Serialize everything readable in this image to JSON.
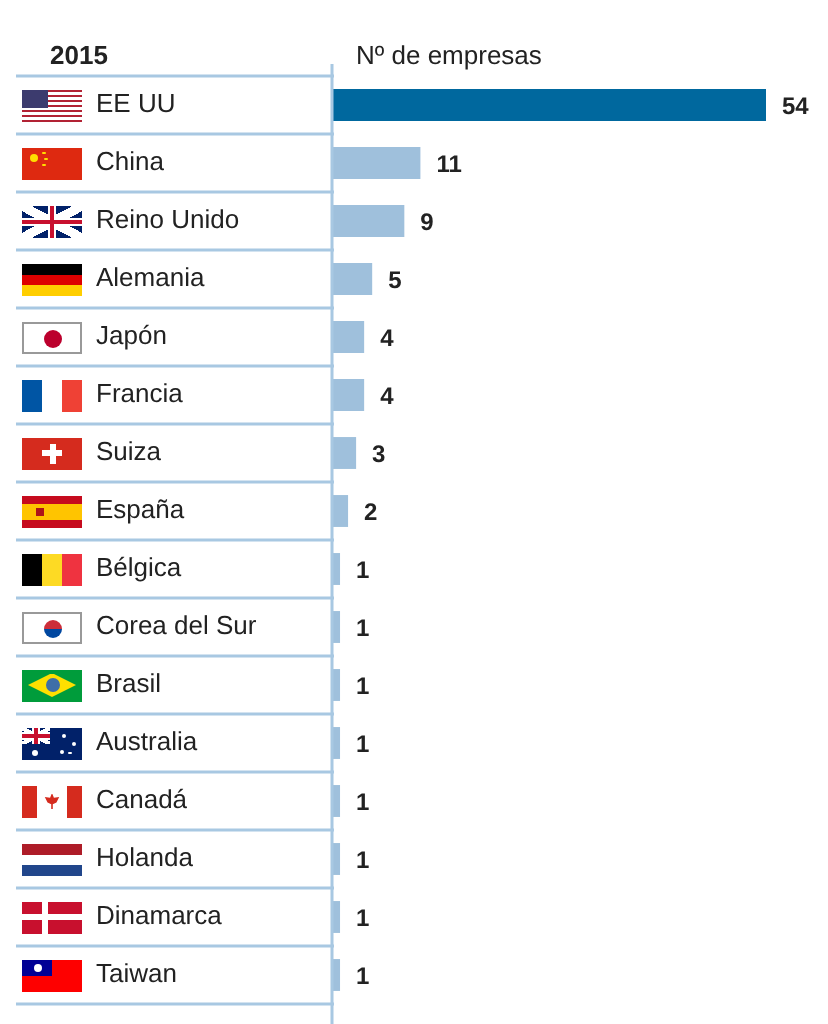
{
  "chart_data": {
    "type": "bar",
    "orientation": "horizontal",
    "title": "2015",
    "xlabel": "Nº de empresas",
    "categories": [
      "EE UU",
      "China",
      "Reino Unido",
      "Alemania",
      "Japón",
      "Francia",
      "Suiza",
      "España",
      "Bélgica",
      "Corea del Sur",
      "Brasil",
      "Australia",
      "Canadá",
      "Holanda",
      "Dinamarca",
      "Taiwan"
    ],
    "values": [
      54,
      11,
      9,
      5,
      4,
      4,
      3,
      2,
      1,
      1,
      1,
      1,
      1,
      1,
      1,
      1
    ],
    "colors": [
      "#00689e",
      "#9fc0dc",
      "#9fc0dc",
      "#9fc0dc",
      "#9fc0dc",
      "#9fc0dc",
      "#9fc0dc",
      "#9fc0dc",
      "#9fc0dc",
      "#9fc0dc",
      "#9fc0dc",
      "#9fc0dc",
      "#9fc0dc",
      "#9fc0dc",
      "#9fc0dc",
      "#9fc0dc"
    ],
    "data_labels": true,
    "tick_labels": "y"
  }
}
